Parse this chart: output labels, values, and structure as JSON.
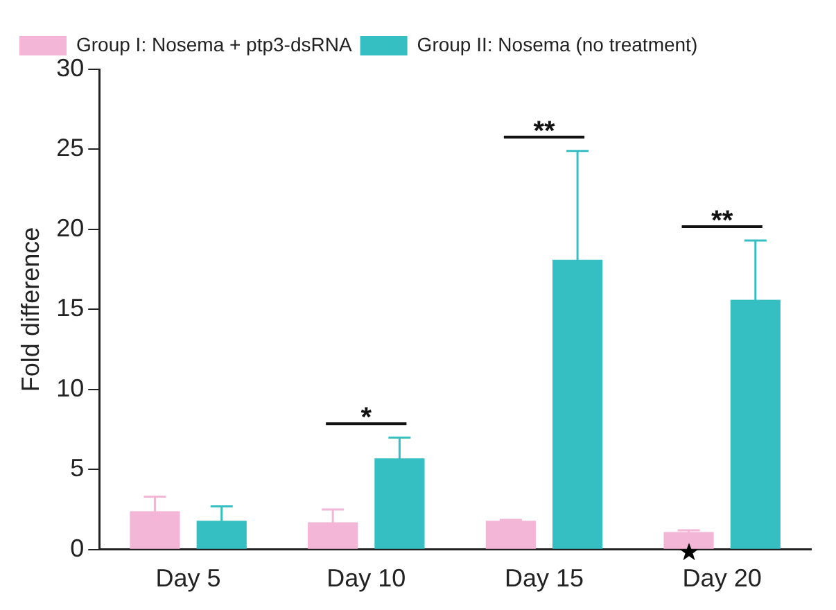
{
  "chart_data": {
    "type": "bar",
    "ylabel": "Fold difference",
    "categories": [
      "Day 5",
      "Day 10",
      "Day 15",
      "Day 20"
    ],
    "series": [
      {
        "name": "Group I: Nosema + ptp3-dsRNA",
        "color": "#f4b6d6",
        "values": [
          2.4,
          1.7,
          1.8,
          1.1
        ],
        "errors": [
          0.9,
          0.8,
          0.05,
          0.1
        ]
      },
      {
        "name": "Group II: Nosema (no treatment)",
        "color": "#35bfc2",
        "values": [
          1.8,
          5.7,
          18.1,
          15.6
        ],
        "errors": [
          0.9,
          1.3,
          6.8,
          3.7
        ]
      }
    ],
    "ylim": [
      0,
      30
    ],
    "yticks": [
      0,
      5,
      10,
      15,
      20,
      25,
      30
    ],
    "grid": false,
    "legend": "top left",
    "annotations": [
      "*",
      "**",
      "**"
    ]
  }
}
